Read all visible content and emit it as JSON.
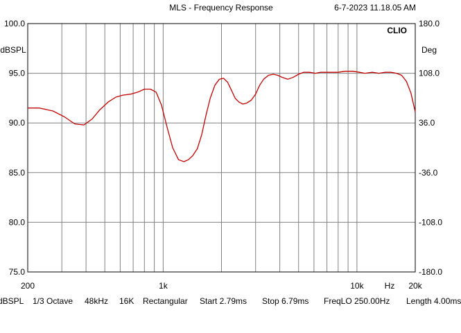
{
  "header": {
    "title": "MLS - Frequency Response",
    "timestamp": "6-7-2023 11.18.05 AM"
  },
  "brand": "CLIO",
  "status_bar": [
    "dBSPL",
    "1/3 Octave",
    "48kHz",
    "16K",
    "Rectangular",
    "Start 2.79ms",
    "Stop 6.79ms",
    "FreqLO 250.00Hz",
    "Length 4.00ms"
  ],
  "chart_data": {
    "type": "line",
    "title": "MLS - Frequency Response",
    "xlabel": "Hz",
    "ylabel": "dBSPL",
    "y2label": "Deg",
    "x_scale": "log",
    "xlim": [
      200,
      20000
    ],
    "ylim": [
      75,
      100
    ],
    "y2lim": [
      -180,
      180
    ],
    "grid": true,
    "line_color": "#c00000",
    "x_tick_labels": [
      {
        "value": 200,
        "label": "200"
      },
      {
        "value": 1000,
        "label": "1k"
      },
      {
        "value": 10000,
        "label": "10k"
      },
      {
        "value": 20000,
        "label": "20k"
      }
    ],
    "y_tick_labels": [
      "75.0",
      "80.0",
      "85.0",
      "90.0",
      "95.0",
      "100.0"
    ],
    "y2_tick_labels": [
      "-180.0",
      "-108.0",
      "-36.0",
      "36.0",
      "108.0",
      "180.0"
    ],
    "series": [
      {
        "x": [
          200,
          230,
          270,
          310,
          350,
          390,
          430,
          470,
          520,
          570,
          620,
          680,
          740,
          800,
          860,
          920,
          980,
          1050,
          1120,
          1200,
          1280,
          1350,
          1420,
          1500,
          1580,
          1660,
          1750,
          1850,
          1950,
          2050,
          2150,
          2250,
          2350,
          2460,
          2580,
          2700,
          2850,
          3000,
          3150,
          3300,
          3500,
          3700,
          3900,
          4100,
          4400,
          4700,
          5000,
          5300,
          5700,
          6100,
          6500,
          7000,
          7500,
          8000,
          8700,
          9500,
          10300,
          11000,
          12000,
          13000,
          14000,
          15000,
          16000,
          17000,
          18000,
          19000,
          20000
        ],
        "y": [
          91.5,
          91.5,
          91.2,
          90.6,
          89.9,
          89.8,
          90.4,
          91.3,
          92.1,
          92.6,
          92.8,
          92.9,
          93.1,
          93.4,
          93.4,
          93.1,
          91.8,
          89.5,
          87.5,
          86.3,
          86.1,
          86.3,
          86.7,
          87.4,
          88.8,
          90.7,
          92.5,
          93.8,
          94.4,
          94.5,
          94.1,
          93.3,
          92.5,
          92.1,
          91.9,
          92.0,
          92.3,
          92.9,
          93.8,
          94.4,
          94.8,
          94.9,
          94.8,
          94.6,
          94.4,
          94.6,
          94.9,
          95.1,
          95.1,
          95.0,
          95.1,
          95.1,
          95.1,
          95.1,
          95.2,
          95.2,
          95.1,
          95.0,
          95.1,
          95.0,
          95.1,
          95.1,
          95.0,
          94.8,
          94.2,
          93.0,
          91.1
        ]
      }
    ]
  }
}
